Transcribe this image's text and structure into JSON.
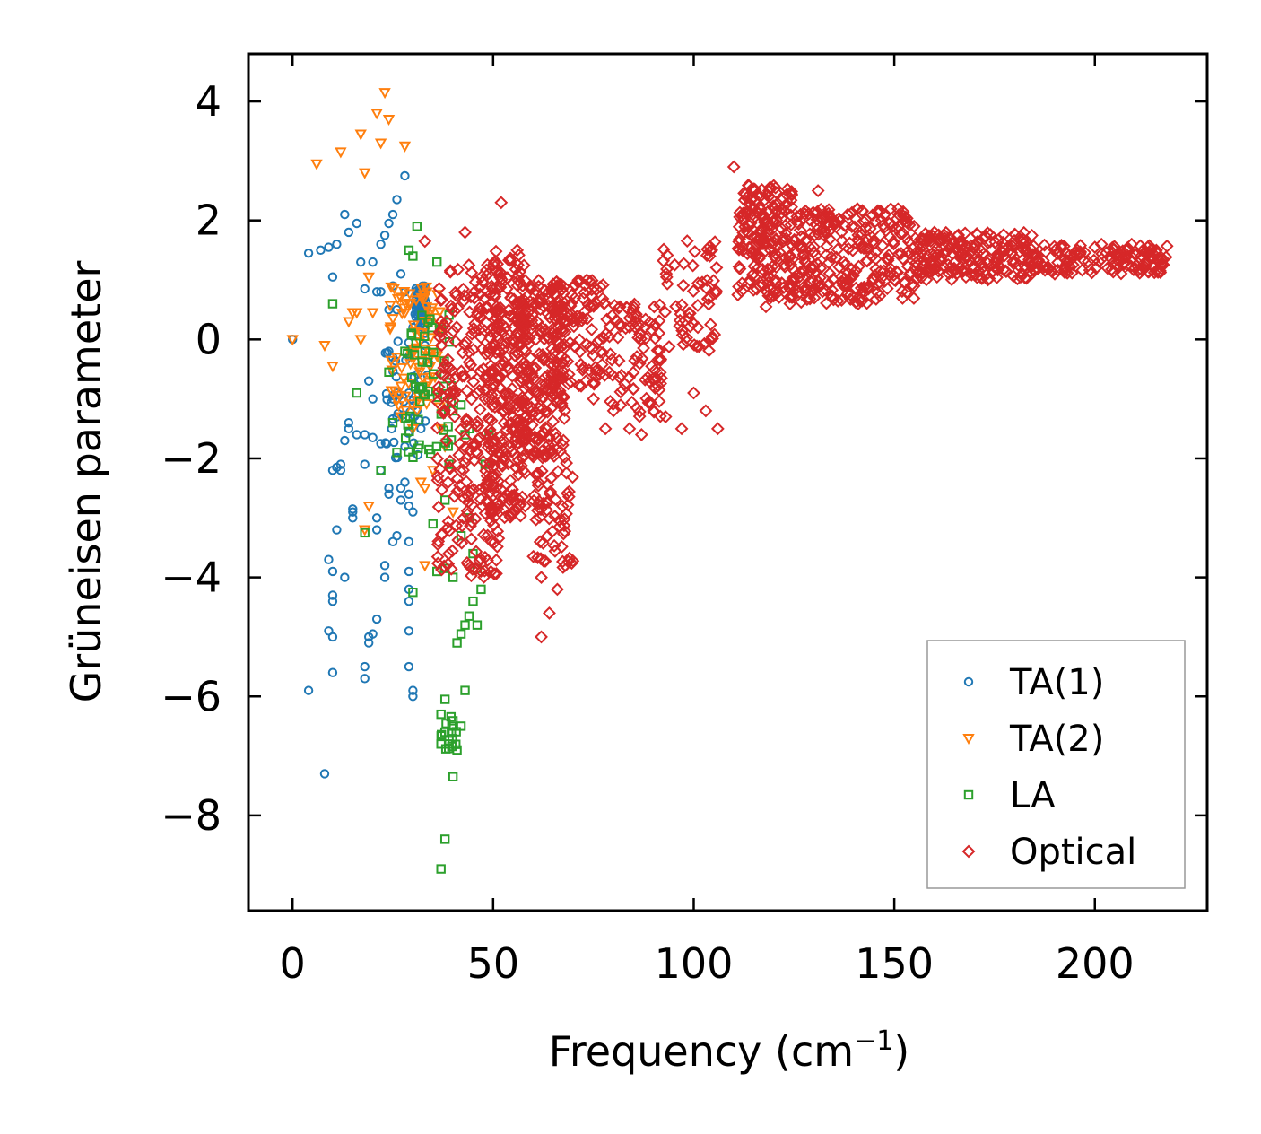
{
  "chart_data": {
    "type": "scatter",
    "title": "",
    "xlabel": "Frequency (cm",
    "xlabel_sup": "−1",
    "xlabel_close": ")",
    "ylabel": "Grüneisen parameter",
    "xlim": [
      -11,
      228
    ],
    "ylim": [
      -9.6,
      4.8
    ],
    "xticks": [
      0,
      50,
      100,
      150,
      200
    ],
    "xtick_labels": [
      "0",
      "50",
      "100",
      "150",
      "200"
    ],
    "yticks": [
      4,
      2,
      0,
      -2,
      -4,
      -6,
      -8
    ],
    "ytick_labels": [
      "4",
      "2",
      "0",
      "−2",
      "−4",
      "−6",
      "−8"
    ],
    "legend_position": "lower-right",
    "series": [
      {
        "name": "TA(1)",
        "color": "#1f77b4",
        "marker": "circle",
        "points": [
          [
            0,
            0
          ],
          [
            4,
            1.45
          ],
          [
            4,
            -5.9
          ],
          [
            7,
            1.5
          ],
          [
            8,
            -7.3
          ],
          [
            9,
            1.55
          ],
          [
            9,
            -4.9
          ],
          [
            9,
            -3.7
          ],
          [
            10,
            1.05
          ],
          [
            10,
            -5.6
          ],
          [
            10,
            -5.0
          ],
          [
            10,
            -4.3
          ],
          [
            10,
            -4.4
          ],
          [
            10,
            -3.9
          ],
          [
            10,
            -2.2
          ],
          [
            11,
            1.6
          ],
          [
            11,
            -3.2
          ],
          [
            11,
            -2.15
          ],
          [
            12,
            -2.1
          ],
          [
            12,
            -2.2
          ],
          [
            13,
            2.1
          ],
          [
            13,
            -4.0
          ],
          [
            13,
            -1.7
          ],
          [
            14,
            1.8
          ],
          [
            14,
            -1.5
          ],
          [
            14,
            -1.4
          ],
          [
            15,
            -2.9
          ],
          [
            15,
            -2.85
          ],
          [
            15,
            -3.0
          ],
          [
            16,
            1.95
          ],
          [
            16,
            -1.6
          ],
          [
            17,
            1.3
          ],
          [
            18,
            0.85
          ],
          [
            18,
            -2.1
          ],
          [
            18,
            -1.6
          ],
          [
            18,
            -5.5
          ],
          [
            18,
            -5.7
          ],
          [
            19,
            -0.7
          ],
          [
            19,
            -5.0
          ],
          [
            19,
            -5.1
          ],
          [
            20,
            1.3
          ],
          [
            20,
            -1.65
          ],
          [
            20,
            -1.0
          ],
          [
            20,
            -4.95
          ],
          [
            21,
            0.8
          ],
          [
            21,
            -4.7
          ],
          [
            21,
            -3.0
          ],
          [
            21,
            -3.2
          ],
          [
            22,
            0.8
          ],
          [
            22,
            1.6
          ],
          [
            22,
            -1.75
          ],
          [
            22,
            -2.2
          ],
          [
            23,
            1.75
          ],
          [
            23,
            -3.8
          ],
          [
            23,
            -4.0
          ],
          [
            24,
            1.95
          ],
          [
            24,
            0.5
          ],
          [
            24,
            -0.2
          ],
          [
            24,
            -2.5
          ],
          [
            24,
            -2.6
          ],
          [
            25,
            2.1
          ],
          [
            25,
            0.9
          ],
          [
            25,
            -0.3
          ],
          [
            25,
            -1.0
          ],
          [
            25,
            -3.4
          ],
          [
            26,
            2.35
          ],
          [
            26,
            0.5
          ],
          [
            26,
            -0.9
          ],
          [
            26,
            -1.3
          ],
          [
            26,
            -3.3
          ],
          [
            27,
            1.1
          ],
          [
            27,
            -2.7
          ],
          [
            27,
            -2.5
          ],
          [
            28,
            2.75
          ],
          [
            28,
            0.8
          ],
          [
            28,
            -1.8
          ],
          [
            28,
            -2.4
          ],
          [
            29,
            -0.9
          ],
          [
            29,
            -2.6
          ],
          [
            29,
            -2.8
          ],
          [
            29,
            -3.4
          ],
          [
            29,
            -3.9
          ],
          [
            29,
            -4.2
          ],
          [
            29,
            -4.4
          ],
          [
            29,
            -4.9
          ],
          [
            29,
            -5.5
          ],
          [
            30,
            -5.9
          ],
          [
            30,
            -6.0
          ],
          [
            30,
            -2.9
          ],
          [
            30,
            0.2
          ],
          [
            31,
            0.5
          ],
          [
            31,
            -1.2
          ],
          [
            32,
            -0.8
          ],
          [
            32,
            -1.5
          ],
          [
            33,
            0.1
          ],
          [
            33,
            -0.1
          ],
          [
            34,
            -0.4
          ]
        ],
        "dense_clusters": [
          {
            "x_range": [
              30.5,
              33.5
            ],
            "y_range": [
              0.2,
              0.9
            ],
            "count": 60
          },
          {
            "x_range": [
              22,
              34
            ],
            "y_range": [
              -2.0,
              0.0
            ],
            "count": 40
          }
        ]
      },
      {
        "name": "TA(2)",
        "color": "#ff7f0e",
        "marker": "triangle-down",
        "points": [
          [
            0,
            0
          ],
          [
            6,
            2.95
          ],
          [
            8,
            -0.1
          ],
          [
            10,
            -0.45
          ],
          [
            12,
            3.15
          ],
          [
            14,
            0.3
          ],
          [
            15,
            0.45
          ],
          [
            16,
            0.45
          ],
          [
            17,
            3.45
          ],
          [
            17,
            0.0
          ],
          [
            18,
            2.8
          ],
          [
            19,
            1.05
          ],
          [
            19,
            -2.8
          ],
          [
            20,
            0.45
          ],
          [
            21,
            3.8
          ],
          [
            22,
            3.3
          ],
          [
            23,
            4.15
          ],
          [
            24,
            3.7
          ],
          [
            25,
            0.35
          ],
          [
            26,
            -0.3
          ],
          [
            27,
            -1.3
          ],
          [
            28,
            3.25
          ],
          [
            29,
            0.6
          ],
          [
            30,
            -1.5
          ],
          [
            31,
            -1.2
          ],
          [
            32,
            -2.4
          ],
          [
            33,
            -2.5
          ],
          [
            33,
            -3.8
          ],
          [
            35,
            -2.2
          ],
          [
            36,
            -0.9
          ],
          [
            37,
            -1.5
          ],
          [
            38,
            -1.8
          ],
          [
            40,
            -2.9
          ],
          [
            18,
            -3.2
          ]
        ],
        "dense_clusters": [
          {
            "x_range": [
              24,
              37
            ],
            "y_range": [
              -1.2,
              0.9
            ],
            "count": 80
          }
        ]
      },
      {
        "name": "LA",
        "color": "#2ca02c",
        "marker": "square",
        "points": [
          [
            10,
            0.6
          ],
          [
            16,
            -0.9
          ],
          [
            22,
            -2.2
          ],
          [
            24,
            -0.55
          ],
          [
            25,
            -1.4
          ],
          [
            26,
            -1.9
          ],
          [
            28,
            -0.2
          ],
          [
            29,
            1.5
          ],
          [
            30,
            1.4
          ],
          [
            30,
            -4.25
          ],
          [
            31,
            1.9
          ],
          [
            33,
            -0.2
          ],
          [
            34,
            -1.85
          ],
          [
            35,
            -3.1
          ],
          [
            36,
            1.3
          ],
          [
            36,
            -3.9
          ],
          [
            37,
            -6.3
          ],
          [
            37,
            -6.8
          ],
          [
            37,
            -8.9
          ],
          [
            38,
            -2.7
          ],
          [
            38,
            -3.85
          ],
          [
            38,
            -6.05
          ],
          [
            38,
            -6.6
          ],
          [
            38,
            -8.4
          ],
          [
            39,
            -2.1
          ],
          [
            39,
            -6.8
          ],
          [
            40,
            -1.2
          ],
          [
            40,
            -4.0
          ],
          [
            40,
            -7.35
          ],
          [
            41,
            -5.1
          ],
          [
            41,
            -6.9
          ],
          [
            42,
            -1.1
          ],
          [
            42,
            -3.3
          ],
          [
            42,
            -4.95
          ],
          [
            42,
            -6.5
          ],
          [
            43,
            -1.6
          ],
          [
            43,
            -4.8
          ],
          [
            43,
            -5.9
          ],
          [
            44,
            -1.5
          ],
          [
            44,
            -3.0
          ],
          [
            44,
            -4.65
          ],
          [
            45,
            -3.6
          ],
          [
            45,
            -4.4
          ],
          [
            46,
            -3.85
          ],
          [
            46,
            -4.8
          ],
          [
            47,
            -4.2
          ],
          [
            48,
            -2.1
          ],
          [
            49,
            -1.6
          ],
          [
            18,
            -3.25
          ]
        ],
        "dense_clusters": [
          {
            "x_range": [
              28,
              40
            ],
            "y_range": [
              -2.0,
              0.5
            ],
            "count": 50
          },
          {
            "x_range": [
              36,
              41
            ],
            "y_range": [
              -6.9,
              -6.3
            ],
            "count": 14
          }
        ]
      },
      {
        "name": "Optical",
        "color": "#d62728",
        "marker": "diamond",
        "points": [
          [
            33,
            1.65
          ],
          [
            43,
            1.8
          ],
          [
            46,
            0.4
          ],
          [
            48,
            -1.0
          ],
          [
            52,
            2.3
          ],
          [
            56,
            1.5
          ],
          [
            58,
            -2.8
          ],
          [
            62,
            -4.0
          ],
          [
            62,
            -5.0
          ],
          [
            64,
            -4.6
          ],
          [
            66,
            -4.2
          ],
          [
            68,
            -3.8
          ],
          [
            70,
            0.3
          ],
          [
            75,
            -1.0
          ],
          [
            78,
            -1.5
          ],
          [
            80,
            -1.2
          ],
          [
            82,
            -0.6
          ],
          [
            84,
            -1.5
          ],
          [
            87,
            -1.6
          ],
          [
            90,
            -1.2
          ],
          [
            93,
            -1.3
          ],
          [
            97,
            -1.5
          ],
          [
            100,
            -0.9
          ],
          [
            103,
            -1.2
          ],
          [
            104,
            1.4
          ],
          [
            106,
            -1.5
          ],
          [
            110,
            2.9
          ],
          [
            111,
            0.75
          ],
          [
            118,
            0.55
          ],
          [
            124,
            0.6
          ],
          [
            131,
            2.5
          ],
          [
            138,
            0.9
          ],
          [
            141,
            0.6
          ],
          [
            150,
            1.0
          ],
          [
            160,
            1.8
          ],
          [
            170,
            1.2
          ],
          [
            180,
            1.6
          ],
          [
            190,
            1.1
          ],
          [
            200,
            1.55
          ],
          [
            206,
            1.4
          ],
          [
            210,
            1.2
          ],
          [
            214,
            1.35
          ],
          [
            217,
            1.35
          ]
        ],
        "dense_clusters": [
          {
            "x_range": [
              36,
              52
            ],
            "y_range": [
              -4.0,
              1.3
            ],
            "count": 250
          },
          {
            "x_range": [
              48,
              58
            ],
            "y_range": [
              -3.0,
              1.5
            ],
            "count": 250
          },
          {
            "x_range": [
              56,
              68
            ],
            "y_range": [
              -2.0,
              1.0
            ],
            "count": 220
          },
          {
            "x_range": [
              60,
              70
            ],
            "y_range": [
              -3.9,
              -2.0
            ],
            "count": 60
          },
          {
            "x_range": [
              64,
              78
            ],
            "y_range": [
              -0.8,
              1.0
            ],
            "count": 120
          },
          {
            "x_range": [
              78,
              92
            ],
            "y_range": [
              -1.3,
              0.6
            ],
            "count": 90
          },
          {
            "x_range": [
              92,
              106
            ],
            "y_range": [
              -0.3,
              1.7
            ],
            "count": 60
          },
          {
            "x_range": [
              111,
              125
            ],
            "y_range": [
              0.7,
              2.6
            ],
            "count": 200
          },
          {
            "x_range": [
              125,
              155
            ],
            "y_range": [
              0.6,
              2.2
            ],
            "count": 260
          },
          {
            "x_range": [
              155,
              185
            ],
            "y_range": [
              1.0,
              1.8
            ],
            "count": 220
          },
          {
            "x_range": [
              185,
              218
            ],
            "y_range": [
              1.1,
              1.6
            ],
            "count": 140
          }
        ]
      }
    ]
  }
}
